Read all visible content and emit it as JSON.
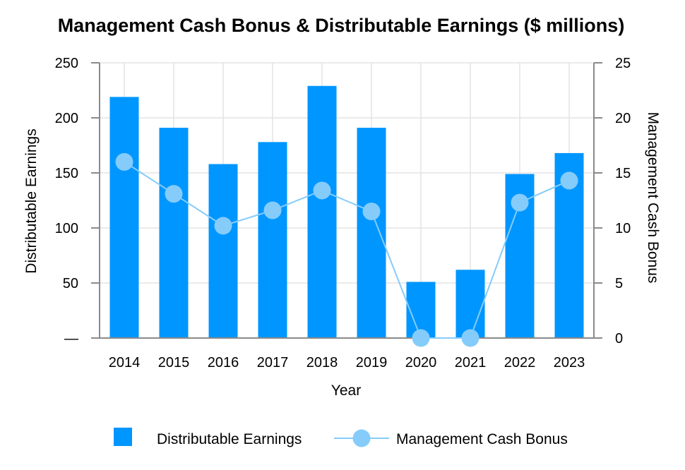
{
  "chart_data": {
    "type": "bar+line",
    "title": "Management Cash Bonus & Distributable Earnings ($ millions)",
    "xlabel": "Year",
    "ylabel_left": "Distributable Earnings",
    "ylabel_right": "Management Cash Bonus",
    "categories": [
      "2014",
      "2015",
      "2016",
      "2017",
      "2018",
      "2019",
      "2020",
      "2021",
      "2022",
      "2023"
    ],
    "ylim_left": [
      0,
      250
    ],
    "ylim_right": [
      0,
      25
    ],
    "left_ticks": [
      "—",
      "50",
      "100",
      "150",
      "200",
      "250"
    ],
    "left_tick_values": [
      0,
      50,
      100,
      150,
      200,
      250
    ],
    "right_ticks": [
      "0",
      "5",
      "10",
      "15",
      "20",
      "25"
    ],
    "right_tick_values": [
      0,
      5,
      10,
      15,
      20,
      25
    ],
    "grid": true,
    "legend_position": "bottom",
    "series": [
      {
        "name": "Distributable Earnings",
        "type": "bar",
        "axis": "left",
        "color": "#0096FF",
        "values": [
          219,
          191,
          158,
          178,
          229,
          191,
          51,
          62,
          149,
          168
        ]
      },
      {
        "name": "Management Cash Bonus",
        "type": "line",
        "axis": "right",
        "color": "#85CCFA",
        "values": [
          16.0,
          13.1,
          10.2,
          11.6,
          13.4,
          11.5,
          0.0,
          0.0,
          12.3,
          14.3
        ]
      }
    ]
  }
}
